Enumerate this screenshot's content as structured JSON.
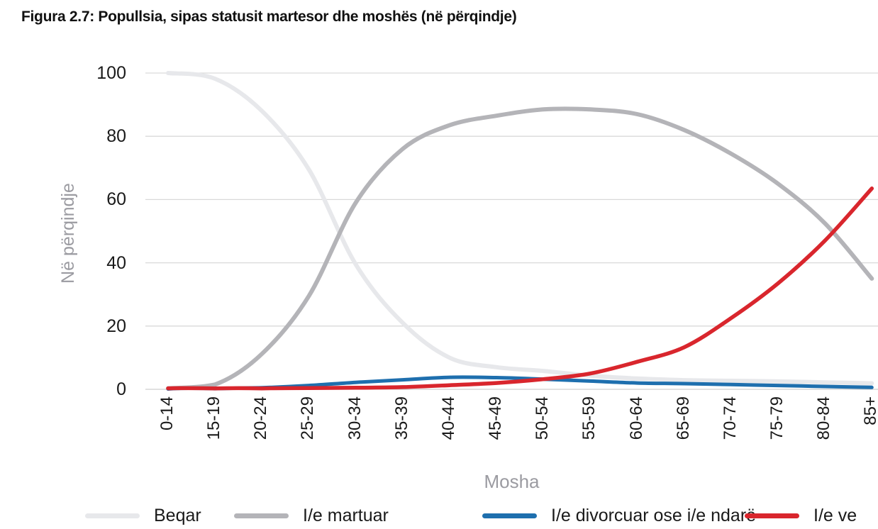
{
  "title": "Figura 2.7: Popullsia, sipas statusit martesor dhe moshës (në përqindje)",
  "chart_data": {
    "type": "line",
    "title": "Figura 2.7: Popullsia, sipas statusit martesor dhe moshës (në përqindje)",
    "xlabel": "Mosha",
    "ylabel": "Në përqindje",
    "ylim": [
      0,
      100
    ],
    "yticks": [
      0,
      20,
      40,
      60,
      80,
      100
    ],
    "grid": "horizontal",
    "legend_position": "bottom",
    "categories": [
      "0-14",
      "15-19",
      "20-24",
      "25-29",
      "30-34",
      "35-39",
      "40-44",
      "45-49",
      "50-54",
      "55-59",
      "60-64",
      "65-69",
      "70-74",
      "75-79",
      "80-84",
      "85+"
    ],
    "series": [
      {
        "name": "Beqar",
        "color": "#e7e8eb",
        "values": [
          100,
          98.2,
          88,
          69.5,
          39.5,
          21,
          10,
          7,
          5.8,
          4.3,
          3.4,
          2.9,
          2.7,
          2.5,
          2.2,
          1.9
        ]
      },
      {
        "name": "I/e martuar",
        "color": "#b4b4b8",
        "values": [
          0.3,
          1.5,
          11.2,
          29.5,
          59,
          76,
          83.5,
          86.5,
          88.5,
          88.5,
          87,
          82,
          74.5,
          65,
          52.5,
          35
        ]
      },
      {
        "name": "I/e divorcuar ose i/e ndarë",
        "color": "#1e6fae",
        "values": [
          0.1,
          0.2,
          0.5,
          1.2,
          2.2,
          3.0,
          3.8,
          3.7,
          3.2,
          2.6,
          2.0,
          1.8,
          1.5,
          1.2,
          0.9,
          0.6
        ]
      },
      {
        "name": "I/e ve",
        "color": "#d9262d",
        "values": [
          0.3,
          0.3,
          0.3,
          0.4,
          0.5,
          0.7,
          1.3,
          2.0,
          3.2,
          5.0,
          8.7,
          13.3,
          22.5,
          33.5,
          47,
          63.5
        ]
      }
    ]
  },
  "colors": {
    "gridline": "#d9d9d9",
    "zero_line": "#cfcfcf",
    "tick_text": "#1a1a1a",
    "axis_title_text": "#9b9ba1",
    "background": "#ffffff"
  }
}
